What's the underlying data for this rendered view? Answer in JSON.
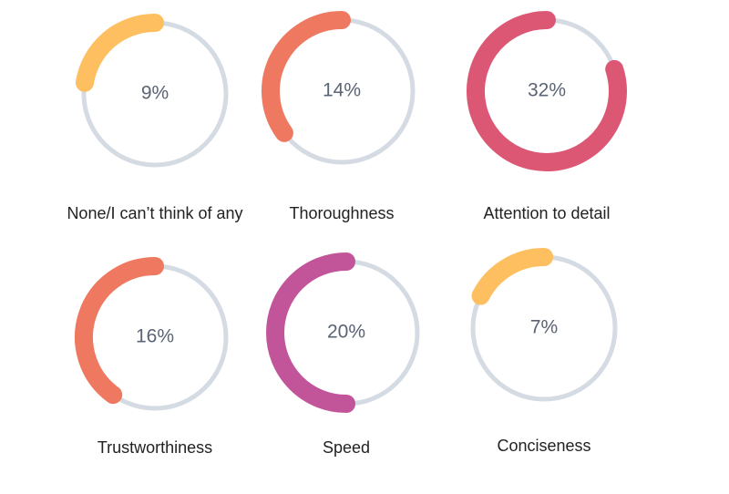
{
  "chart_data": {
    "type": "gauge",
    "categories": [
      "None/I can’t think of any",
      "Thoroughness",
      "Attention to detail",
      "Trustworthiness",
      "Speed",
      "Conciseness"
    ],
    "values": [
      9,
      14,
      32,
      16,
      20,
      7
    ],
    "value_labels": [
      "9%",
      "14%",
      "32%",
      "16%",
      "20%",
      "7%"
    ],
    "colors": [
      "#fdbf60",
      "#ee7960",
      "#dc5774",
      "#ee7960",
      "#c2559a",
      "#fdbf60"
    ],
    "track_color": "#d5dbe3"
  }
}
